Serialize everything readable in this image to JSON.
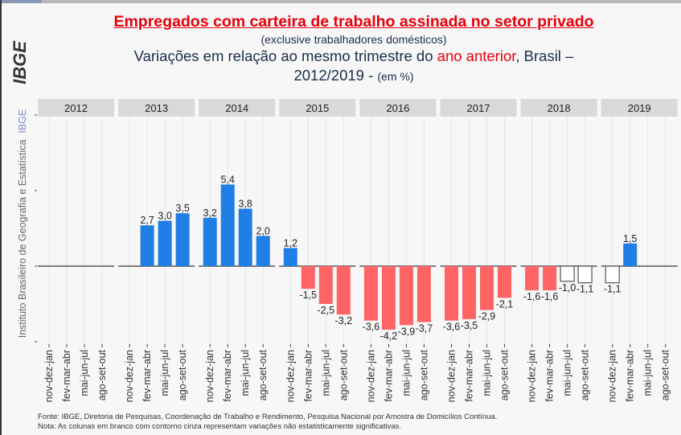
{
  "header": {
    "title": "Empregados com carteira de trabalho assinada no setor privado",
    "subtitle": "(exclusive trabalhadores domésticos)",
    "line3_part1": "Variações em relação ao mesmo trimestre do ",
    "line3_red": "ano anterior",
    "line3_part2": ", Brasil –",
    "line4_main": "2012/2019 - ",
    "line4_small": "(em %)"
  },
  "sidebar": {
    "logo_text": "IBGE",
    "institute": "Instituto Brasileiro de Geografia e Estatística",
    "short": "IBGE"
  },
  "footer": {
    "source": "Fonte: IBGE, Diretoria de Pesquisas, Coordenação de Trabalho e Rendimento, Pesquisa Nacional por Amostra de Domicílios Contínua.",
    "note": "Nota: As colunas em branco com contorno cinza representam variações não estatisticamente significativas."
  },
  "colors": {
    "positive": "#1f7fe6",
    "negative": "#fe6464",
    "not_significant_fill": "#ffffff",
    "not_significant_stroke": "#555555",
    "panel_strip": "#d9d9d9"
  },
  "chart_data": {
    "type": "bar",
    "title": "Empregados com carteira de trabalho assinada no setor privado",
    "ylabel": "%",
    "ylim": [
      -5,
      10
    ],
    "grid": true,
    "categories": [
      "nov-dez-jan",
      "fev-mar-abr",
      "mai-jun-jul",
      "ago-set-out"
    ],
    "panels": [
      {
        "year": "2012",
        "values": [
          null,
          null,
          null,
          null
        ],
        "labels": [
          null,
          null,
          null,
          null
        ],
        "significant": [
          true,
          true,
          true,
          true
        ]
      },
      {
        "year": "2013",
        "values": [
          null,
          2.7,
          3.0,
          3.5
        ],
        "labels": [
          null,
          "2,7",
          "3,0",
          "3,5"
        ],
        "significant": [
          true,
          true,
          true,
          true
        ]
      },
      {
        "year": "2014",
        "values": [
          3.2,
          5.4,
          3.8,
          2.0
        ],
        "labels": [
          "3,2",
          "5,4",
          "3,8",
          "2,0"
        ],
        "significant": [
          true,
          true,
          true,
          true
        ]
      },
      {
        "year": "2015",
        "values": [
          1.2,
          -1.5,
          -2.5,
          -3.2
        ],
        "labels": [
          "1,2",
          "-1,5",
          "-2,5",
          "-3,2"
        ],
        "significant": [
          true,
          true,
          true,
          true
        ]
      },
      {
        "year": "2016",
        "values": [
          -3.6,
          -4.2,
          -3.9,
          -3.7
        ],
        "labels": [
          "-3,6",
          "-4,2",
          "-3,9",
          "-3,7"
        ],
        "significant": [
          true,
          true,
          true,
          true
        ]
      },
      {
        "year": "2017",
        "values": [
          -3.6,
          -3.5,
          -2.9,
          -2.1
        ],
        "labels": [
          "-3,6",
          "-3,5",
          "-2,9",
          "-2,1"
        ],
        "significant": [
          true,
          true,
          true,
          true
        ]
      },
      {
        "year": "2018",
        "values": [
          -1.6,
          -1.6,
          -1.0,
          -1.1
        ],
        "labels": [
          "-1,6",
          "-1,6",
          "-1,0",
          "-1,1"
        ],
        "significant": [
          true,
          true,
          false,
          false
        ]
      },
      {
        "year": "2019",
        "values": [
          -1.1,
          1.5,
          null,
          null
        ],
        "labels": [
          "-1,1",
          "1,5",
          null,
          null
        ],
        "significant": [
          false,
          true,
          true,
          true
        ]
      }
    ]
  }
}
